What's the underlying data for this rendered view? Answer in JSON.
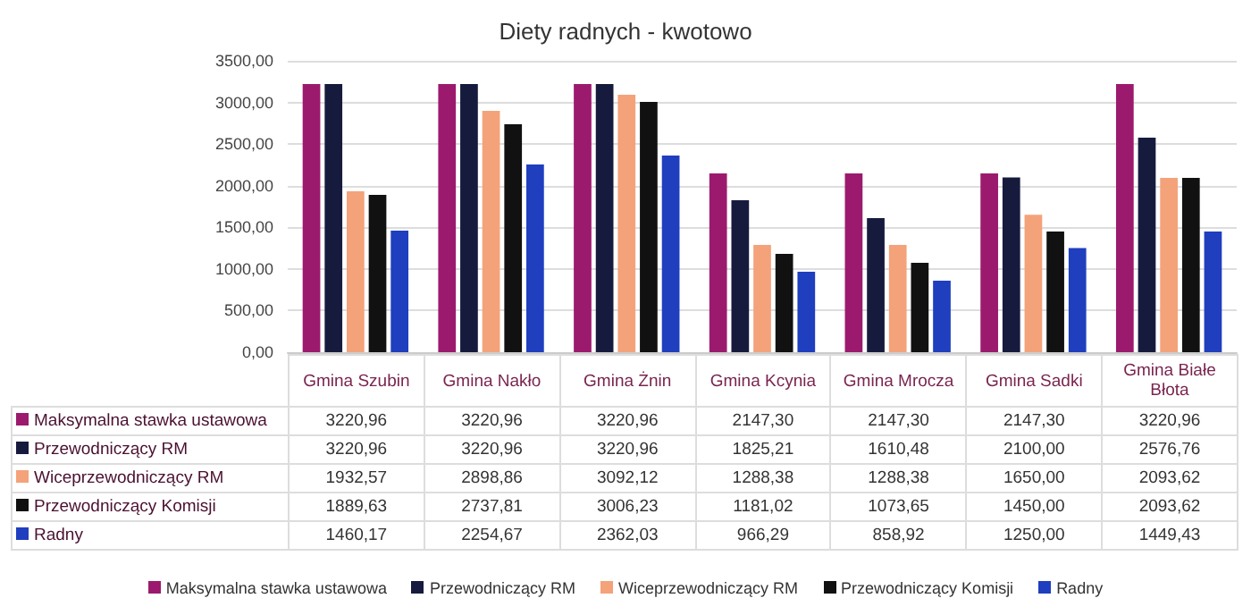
{
  "chart_data": {
    "type": "bar",
    "title": "Diety radnych - kwotowo",
    "categories": [
      "Gmina Szubin",
      "Gmina Nakło",
      "Gmina Żnin",
      "Gmina Kcynia",
      "Gmina Mrocza",
      "Gmina Sadki",
      "Gmina Białe Błota"
    ],
    "series": [
      {
        "name": "Maksymalna stawka ustawowa",
        "color": "#9c1a6e",
        "values": [
          3220.96,
          3220.96,
          3220.96,
          2147.3,
          2147.3,
          2147.3,
          3220.96
        ],
        "value_labels": [
          "3220,96",
          "3220,96",
          "3220,96",
          "2147,30",
          "2147,30",
          "2147,30",
          "3220,96"
        ]
      },
      {
        "name": "Przewodniczący RM",
        "color": "#161b3e",
        "values": [
          3220.96,
          3220.96,
          3220.96,
          1825.21,
          1610.48,
          2100.0,
          2576.76
        ],
        "value_labels": [
          "3220,96",
          "3220,96",
          "3220,96",
          "1825,21",
          "1610,48",
          "2100,00",
          "2576,76"
        ]
      },
      {
        "name": "Wiceprzewodniczący RM",
        "color": "#f4a27a",
        "values": [
          1932.57,
          2898.86,
          3092.12,
          1288.38,
          1288.38,
          1650.0,
          2093.62
        ],
        "value_labels": [
          "1932,57",
          "2898,86",
          "3092,12",
          "1288,38",
          "1288,38",
          "1650,00",
          "2093,62"
        ]
      },
      {
        "name": "Przewodniczący Komisji",
        "color": "#111111",
        "values": [
          1889.63,
          2737.81,
          3006.23,
          1181.02,
          1073.65,
          1450.0,
          2093.62
        ],
        "value_labels": [
          "1889,63",
          "2737,81",
          "3006,23",
          "1181,02",
          "1073,65",
          "1450,00",
          "2093,62"
        ]
      },
      {
        "name": "Radny",
        "color": "#1f3fbf",
        "values": [
          1460.17,
          2254.67,
          2362.03,
          966.29,
          858.92,
          1250.0,
          1449.43
        ],
        "value_labels": [
          "1460,17",
          "2254,67",
          "2362,03",
          "966,29",
          "858,92",
          "1250,00",
          "1449,43"
        ]
      }
    ],
    "ylim": [
      0,
      3500
    ],
    "yticks": [
      {
        "value": 0,
        "label": "0,00"
      },
      {
        "value": 500,
        "label": "500,00"
      },
      {
        "value": 1000,
        "label": "1000,00"
      },
      {
        "value": 1500,
        "label": "1500,00"
      },
      {
        "value": 2000,
        "label": "2000,00"
      },
      {
        "value": 2500,
        "label": "2500,00"
      },
      {
        "value": 3000,
        "label": "3000,00"
      },
      {
        "value": 3500,
        "label": "3500,00"
      }
    ],
    "grid": "y",
    "legend": "bottom"
  }
}
